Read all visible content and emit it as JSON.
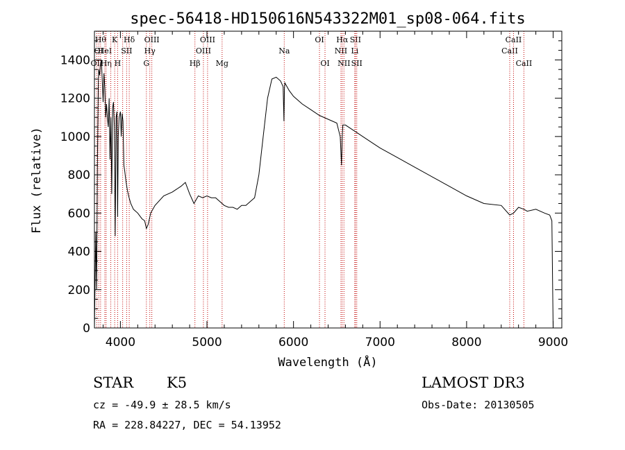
{
  "chart_data": {
    "type": "line",
    "title": "spec-56418-HD150616N543322M01_sp08-064.fits",
    "xlabel": "Wavelength (Å)",
    "ylabel": "Flux (relative)",
    "xlim": [
      3700,
      9100
    ],
    "ylim": [
      0,
      1550
    ],
    "xticks": [
      4000,
      5000,
      6000,
      7000,
      8000,
      9000
    ],
    "yticks": [
      0,
      200,
      400,
      600,
      800,
      1000,
      1200,
      1400
    ],
    "grid": false,
    "series": [
      {
        "name": "spectrum",
        "x": [
          3700,
          3715,
          3725,
          3735,
          3745,
          3750,
          3760,
          3770,
          3780,
          3790,
          3800,
          3810,
          3820,
          3830,
          3840,
          3850,
          3860,
          3870,
          3880,
          3890,
          3900,
          3910,
          3920,
          3930,
          3940,
          3950,
          3960,
          3968,
          3975,
          3985,
          4000,
          4010,
          4020,
          4030,
          4040,
          4050,
          4060,
          4070,
          4080,
          4090,
          4100,
          4120,
          4150,
          4200,
          4250,
          4280,
          4300,
          4320,
          4350,
          4400,
          4500,
          4600,
          4700,
          4750,
          4800,
          4850,
          4900,
          4950,
          5000,
          5050,
          5100,
          5150,
          5200,
          5250,
          5300,
          5350,
          5400,
          5450,
          5500,
          5550,
          5600,
          5650,
          5700,
          5750,
          5800,
          5850,
          5880,
          5890,
          5895,
          5900,
          5950,
          6000,
          6100,
          6200,
          6300,
          6400,
          6500,
          6540,
          6555,
          6563,
          6570,
          6600,
          6700,
          6800,
          6900,
          7000,
          7200,
          7400,
          7600,
          7800,
          8000,
          8200,
          8400,
          8498,
          8542,
          8600,
          8662,
          8700,
          8800,
          8900,
          8960,
          8985,
          9000
        ],
        "values": [
          0,
          500,
          200,
          900,
          1280,
          1350,
          1320,
          1380,
          1400,
          1300,
          1180,
          1330,
          1250,
          1100,
          1170,
          1100,
          1050,
          1200,
          880,
          1100,
          700,
          1150,
          1180,
          1050,
          480,
          1100,
          1130,
          580,
          1000,
          1100,
          1130,
          1000,
          1120,
          1080,
          850,
          820,
          780,
          750,
          720,
          700,
          680,
          650,
          620,
          600,
          570,
          560,
          520,
          540,
          600,
          640,
          690,
          710,
          740,
          760,
          700,
          650,
          690,
          680,
          690,
          680,
          680,
          660,
          640,
          630,
          630,
          620,
          640,
          640,
          660,
          680,
          800,
          1000,
          1200,
          1300,
          1310,
          1290,
          1260,
          1080,
          1250,
          1280,
          1240,
          1210,
          1170,
          1140,
          1110,
          1090,
          1070,
          1000,
          850,
          1000,
          1060,
          1060,
          1030,
          1000,
          970,
          940,
          890,
          840,
          790,
          740,
          690,
          650,
          640,
          590,
          600,
          630,
          620,
          610,
          620,
          600,
          590,
          560,
          0
        ]
      }
    ],
    "line_markers": [
      {
        "wavelength": 3727,
        "label": "OII",
        "row": 3
      },
      {
        "wavelength": 3750,
        "label": "OI",
        "row": 2
      },
      {
        "wavelength": 3771,
        "label": "Hθ",
        "row": 1
      },
      {
        "wavelength": 3820,
        "label": "HeI",
        "row": 2
      },
      {
        "wavelength": 3835,
        "label": "Hη",
        "row": 3
      },
      {
        "wavelength": 3889,
        "label": "",
        "row": 0
      },
      {
        "wavelength": 3934,
        "label": "K",
        "row": 1
      },
      {
        "wavelength": 3968,
        "label": "H",
        "row": 3
      },
      {
        "wavelength": 4026,
        "label": "",
        "row": 0
      },
      {
        "wavelength": 4072,
        "label": "SII",
        "row": 2
      },
      {
        "wavelength": 4102,
        "label": "Hδ",
        "row": 1
      },
      {
        "wavelength": 4300,
        "label": "G",
        "row": 3
      },
      {
        "wavelength": 4340,
        "label": "Hγ",
        "row": 2
      },
      {
        "wavelength": 4363,
        "label": "OIII",
        "row": 1
      },
      {
        "wavelength": 4861,
        "label": "Hβ",
        "row": 3
      },
      {
        "wavelength": 4959,
        "label": "OIII",
        "row": 2
      },
      {
        "wavelength": 5007,
        "label": "OIII",
        "row": 1
      },
      {
        "wavelength": 5175,
        "label": "Mg",
        "row": 3
      },
      {
        "wavelength": 5893,
        "label": "Na",
        "row": 2
      },
      {
        "wavelength": 6300,
        "label": "OI",
        "row": 1
      },
      {
        "wavelength": 6364,
        "label": "OI",
        "row": 3
      },
      {
        "wavelength": 6548,
        "label": "NII",
        "row": 2
      },
      {
        "wavelength": 6563,
        "label": "Hα",
        "row": 1
      },
      {
        "wavelength": 6583,
        "label": "NII",
        "row": 3
      },
      {
        "wavelength": 6708,
        "label": "Li",
        "row": 2
      },
      {
        "wavelength": 6716,
        "label": "SII",
        "row": 1
      },
      {
        "wavelength": 6731,
        "label": "SII",
        "row": 3
      },
      {
        "wavelength": 8498,
        "label": "CaII",
        "row": 2
      },
      {
        "wavelength": 8542,
        "label": "CaII",
        "row": 1
      },
      {
        "wavelength": 8662,
        "label": "CaII",
        "row": 3
      }
    ]
  },
  "info": {
    "class": "STAR",
    "subclass": "K5",
    "survey": "LAMOST DR3",
    "cz": "cz = -49.9 ± 28.5 km/s",
    "obs_date": "Obs-Date: 20130505",
    "coords": "RA = 228.84227, DEC =  54.13952"
  }
}
